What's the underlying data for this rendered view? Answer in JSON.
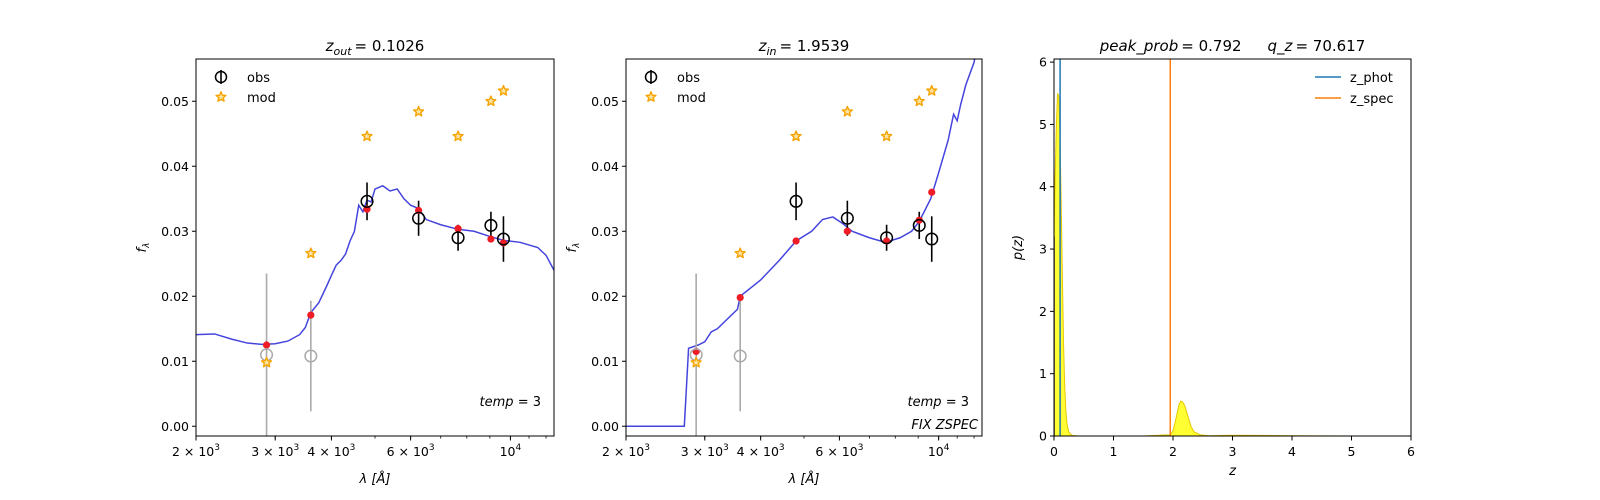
{
  "chart_data": [
    {
      "type": "scatter",
      "title_var": "z",
      "title_sub": "out",
      "title_value": "= 0.1026",
      "xlabel_pre": "λ [",
      "xlabel_unit": "Å",
      "xlabel_post": "]",
      "ylabel_var": "f",
      "ylabel_sub": "λ",
      "xscale": "log",
      "xlim": [
        2000,
        12500
      ],
      "ylim": [
        -0.0015,
        0.0565
      ],
      "x_ticks_major": [
        {
          "v": 2000,
          "label": "2 × 10",
          "exp": "3"
        },
        {
          "v": 3000,
          "label": "3 × 10",
          "exp": "3"
        },
        {
          "v": 4000,
          "label": "4 × 10",
          "exp": "3"
        },
        {
          "v": 6000,
          "label": "6 × 10",
          "exp": "3"
        },
        {
          "v": 10000,
          "label": "10",
          "exp": "4"
        }
      ],
      "y_ticks": [
        0.0,
        0.01,
        0.02,
        0.03,
        0.04,
        0.05
      ],
      "y_tick_labels": [
        "0.00",
        "0.01",
        "0.02",
        "0.03",
        "0.04",
        "0.05"
      ],
      "legend": [
        {
          "name": "obs",
          "marker": "open-circle-errorbar"
        },
        {
          "name": "mod",
          "marker": "star"
        }
      ],
      "legend_placement": "top-left",
      "annotations": [
        {
          "text_var": "temp",
          "text_value": " = 3"
        }
      ],
      "obs": [
        {
          "x": 2870,
          "y": 0.011,
          "err": 0.0125,
          "color": "#aaaaaa"
        },
        {
          "x": 3600,
          "y": 0.0108,
          "err": 0.0085,
          "color": "#aaaaaa"
        },
        {
          "x": 4800,
          "y": 0.0346,
          "err": 0.0029,
          "color": "#000000"
        },
        {
          "x": 6250,
          "y": 0.032,
          "err": 0.0027,
          "color": "#000000"
        },
        {
          "x": 7650,
          "y": 0.029,
          "err": 0.002,
          "color": "#000000"
        },
        {
          "x": 9050,
          "y": 0.0309,
          "err": 0.0021,
          "color": "#000000"
        },
        {
          "x": 9650,
          "y": 0.0288,
          "err": 0.0035,
          "color": "#000000"
        }
      ],
      "mod": [
        {
          "x": 2870,
          "y": 0.0098
        },
        {
          "x": 3600,
          "y": 0.0266
        },
        {
          "x": 4800,
          "y": 0.0446
        },
        {
          "x": 6250,
          "y": 0.0484
        },
        {
          "x": 7650,
          "y": 0.0446
        },
        {
          "x": 9050,
          "y": 0.05
        },
        {
          "x": 9650,
          "y": 0.0516
        }
      ],
      "model_points": [
        {
          "x": 2870,
          "y": 0.0125
        },
        {
          "x": 3600,
          "y": 0.0171
        },
        {
          "x": 4800,
          "y": 0.0334
        },
        {
          "x": 6250,
          "y": 0.0332
        },
        {
          "x": 7650,
          "y": 0.0304
        },
        {
          "x": 9050,
          "y": 0.0288
        },
        {
          "x": 9650,
          "y": 0.0282
        }
      ],
      "sed_line": [
        [
          2000,
          0.0141
        ],
        [
          2200,
          0.0142
        ],
        [
          2400,
          0.0134
        ],
        [
          2600,
          0.0128
        ],
        [
          2800,
          0.0126
        ],
        [
          3000,
          0.0127
        ],
        [
          3200,
          0.0131
        ],
        [
          3400,
          0.0141
        ],
        [
          3500,
          0.0152
        ],
        [
          3600,
          0.0175
        ],
        [
          3750,
          0.019
        ],
        [
          3900,
          0.0215
        ],
        [
          4000,
          0.0232
        ],
        [
          4100,
          0.0248
        ],
        [
          4200,
          0.0255
        ],
        [
          4300,
          0.0265
        ],
        [
          4400,
          0.0285
        ],
        [
          4500,
          0.03
        ],
        [
          4600,
          0.034
        ],
        [
          4700,
          0.033
        ],
        [
          4800,
          0.0348
        ],
        [
          4900,
          0.0345
        ],
        [
          5000,
          0.0365
        ],
        [
          5200,
          0.037
        ],
        [
          5400,
          0.0362
        ],
        [
          5600,
          0.0365
        ],
        [
          5800,
          0.035
        ],
        [
          6000,
          0.034
        ],
        [
          6250,
          0.0335
        ],
        [
          6500,
          0.0318
        ],
        [
          7000,
          0.031
        ],
        [
          7650,
          0.0303
        ],
        [
          8300,
          0.03
        ],
        [
          9000,
          0.0292
        ],
        [
          9650,
          0.0286
        ],
        [
          10500,
          0.0283
        ],
        [
          11500,
          0.0275
        ],
        [
          12000,
          0.0263
        ],
        [
          12500,
          0.024
        ]
      ]
    },
    {
      "type": "scatter",
      "title_var": "z",
      "title_sub": "in",
      "title_value": "= 1.9539",
      "xlabel_pre": "λ [",
      "xlabel_unit": "Å",
      "xlabel_post": "]",
      "ylabel_var": "f",
      "ylabel_sub": "λ",
      "xscale": "log",
      "xlim": [
        2000,
        12500
      ],
      "ylim": [
        -0.0015,
        0.0565
      ],
      "x_ticks_major": [
        {
          "v": 2000,
          "label": "2 × 10",
          "exp": "3"
        },
        {
          "v": 3000,
          "label": "3 × 10",
          "exp": "3"
        },
        {
          "v": 4000,
          "label": "4 × 10",
          "exp": "3"
        },
        {
          "v": 6000,
          "label": "6 × 10",
          "exp": "3"
        },
        {
          "v": 10000,
          "label": "10",
          "exp": "4"
        }
      ],
      "y_ticks": [
        0.0,
        0.01,
        0.02,
        0.03,
        0.04,
        0.05
      ],
      "y_tick_labels": [
        "0.00",
        "0.01",
        "0.02",
        "0.03",
        "0.04",
        "0.05"
      ],
      "legend": [
        {
          "name": "obs",
          "marker": "open-circle-errorbar"
        },
        {
          "name": "mod",
          "marker": "star"
        }
      ],
      "legend_placement": "top-left",
      "annotations": [
        {
          "text_var": "temp",
          "text_value": " = 3"
        },
        {
          "text_var": "FIX ZSPEC",
          "text_value": ""
        }
      ],
      "obs": [
        {
          "x": 2870,
          "y": 0.011,
          "err": 0.0125,
          "color": "#aaaaaa"
        },
        {
          "x": 3600,
          "y": 0.0108,
          "err": 0.0085,
          "color": "#aaaaaa"
        },
        {
          "x": 4800,
          "y": 0.0346,
          "err": 0.0029,
          "color": "#000000"
        },
        {
          "x": 6250,
          "y": 0.032,
          "err": 0.0027,
          "color": "#000000"
        },
        {
          "x": 7650,
          "y": 0.029,
          "err": 0.002,
          "color": "#000000"
        },
        {
          "x": 9050,
          "y": 0.0309,
          "err": 0.0021,
          "color": "#000000"
        },
        {
          "x": 9650,
          "y": 0.0288,
          "err": 0.0035,
          "color": "#000000"
        }
      ],
      "mod": [
        {
          "x": 2870,
          "y": 0.0098
        },
        {
          "x": 3600,
          "y": 0.0266
        },
        {
          "x": 4800,
          "y": 0.0446
        },
        {
          "x": 6250,
          "y": 0.0484
        },
        {
          "x": 7650,
          "y": 0.0446
        },
        {
          "x": 9050,
          "y": 0.05
        },
        {
          "x": 9650,
          "y": 0.0516
        }
      ],
      "model_points": [
        {
          "x": 2870,
          "y": 0.0115
        },
        {
          "x": 3600,
          "y": 0.0198
        },
        {
          "x": 4800,
          "y": 0.0285
        },
        {
          "x": 6250,
          "y": 0.03
        },
        {
          "x": 7650,
          "y": 0.0285
        },
        {
          "x": 9050,
          "y": 0.0317
        },
        {
          "x": 9650,
          "y": 0.036
        }
      ],
      "sed_line": [
        [
          2000,
          0.0
        ],
        [
          2700,
          0.0
        ],
        [
          2730,
          0.006
        ],
        [
          2760,
          0.012
        ],
        [
          2900,
          0.0125
        ],
        [
          3000,
          0.013
        ],
        [
          3100,
          0.0145
        ],
        [
          3200,
          0.015
        ],
        [
          3550,
          0.018
        ],
        [
          3600,
          0.02
        ],
        [
          4000,
          0.0225
        ],
        [
          4400,
          0.0255
        ],
        [
          4800,
          0.0285
        ],
        [
          5200,
          0.03
        ],
        [
          5500,
          0.0318
        ],
        [
          5800,
          0.0322
        ],
        [
          6100,
          0.0312
        ],
        [
          6400,
          0.03
        ],
        [
          7000,
          0.029
        ],
        [
          7600,
          0.0283
        ],
        [
          8200,
          0.029
        ],
        [
          8700,
          0.03
        ],
        [
          9050,
          0.0315
        ],
        [
          9600,
          0.035
        ],
        [
          10000,
          0.039
        ],
        [
          10500,
          0.044
        ],
        [
          10800,
          0.048
        ],
        [
          11000,
          0.047
        ],
        [
          11200,
          0.0495
        ],
        [
          11500,
          0.0525
        ],
        [
          12000,
          0.056
        ],
        [
          12300,
          0.06
        ]
      ]
    },
    {
      "type": "area",
      "title_parts": [
        {
          "var": "peak_prob",
          "value": "= 0.792"
        },
        {
          "var": "q_z",
          "value": "= 70.617"
        }
      ],
      "xlabel_var": "z",
      "ylabel_var": "p(z)",
      "xlim": [
        0,
        6
      ],
      "ylim": [
        0,
        6.05
      ],
      "x_ticks": [
        0,
        1,
        2,
        3,
        4,
        5,
        6
      ],
      "x_tick_labels": [
        "0",
        "1",
        "2",
        "3",
        "4",
        "5",
        "6"
      ],
      "y_ticks": [
        0,
        1,
        2,
        3,
        4,
        5,
        6
      ],
      "y_tick_labels": [
        "0",
        "1",
        "2",
        "3",
        "4",
        "5",
        "6"
      ],
      "legend": [
        {
          "name": "z_phot",
          "color": "#1f77b4"
        },
        {
          "name": "z_spec",
          "color": "#ff7f0e"
        }
      ],
      "legend_placement": "top-right",
      "z_phot": 0.1026,
      "z_spec": 1.9539,
      "pz_curve": [
        [
          0.0,
          3.2
        ],
        [
          0.02,
          4.2
        ],
        [
          0.04,
          5.0
        ],
        [
          0.06,
          5.5
        ],
        [
          0.08,
          5.45
        ],
        [
          0.1,
          4.8
        ],
        [
          0.12,
          3.8
        ],
        [
          0.14,
          2.6
        ],
        [
          0.16,
          1.5
        ],
        [
          0.18,
          0.8
        ],
        [
          0.2,
          0.4
        ],
        [
          0.22,
          0.18
        ],
        [
          0.25,
          0.06
        ],
        [
          0.3,
          0.01
        ],
        [
          0.4,
          0.0
        ],
        [
          1.5,
          0.0
        ],
        [
          1.95,
          0.02
        ],
        [
          2.0,
          0.08
        ],
        [
          2.05,
          0.28
        ],
        [
          2.1,
          0.5
        ],
        [
          2.13,
          0.56
        ],
        [
          2.16,
          0.55
        ],
        [
          2.2,
          0.48
        ],
        [
          2.25,
          0.32
        ],
        [
          2.3,
          0.16
        ],
        [
          2.35,
          0.07
        ],
        [
          2.45,
          0.02
        ],
        [
          2.6,
          0.005
        ],
        [
          3.0,
          0.012
        ],
        [
          4.0,
          0.005
        ],
        [
          5.0,
          0.0
        ]
      ]
    }
  ]
}
